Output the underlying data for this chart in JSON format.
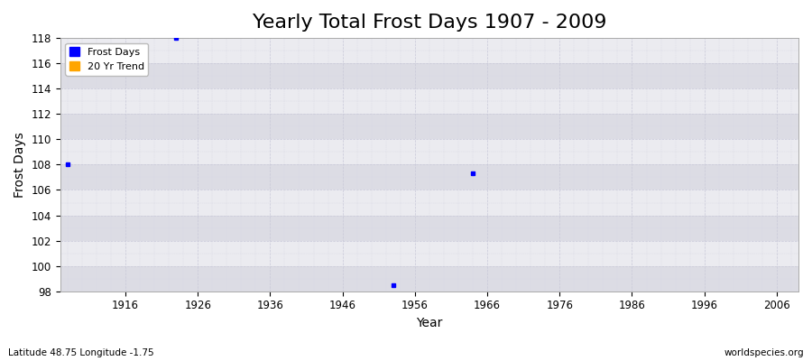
{
  "title": "Yearly Total Frost Days 1907 - 2009",
  "xlabel": "Year",
  "ylabel": "Frost Days",
  "xlim": [
    1907,
    2009
  ],
  "ylim": [
    98,
    118
  ],
  "yticks": [
    98,
    100,
    102,
    104,
    106,
    108,
    110,
    112,
    114,
    116,
    118
  ],
  "xticks": [
    1916,
    1926,
    1936,
    1946,
    1956,
    1966,
    1976,
    1986,
    1996,
    2006
  ],
  "data_points": [
    {
      "year": 1908,
      "value": 108
    },
    {
      "year": 1923,
      "value": 118
    },
    {
      "year": 1953,
      "value": 98.5
    },
    {
      "year": 1964,
      "value": 107.3
    }
  ],
  "point_color": "#0000ff",
  "trend_color": "#ffa500",
  "background_color": "#ffffff",
  "plot_bg_color": "#e8e8ee",
  "band_color_light": "#ebebf0",
  "band_color_dark": "#dcdce4",
  "grid_major_color": "#c8c8d8",
  "grid_minor_color": "#d8d8e4",
  "legend_labels": [
    "Frost Days",
    "20 Yr Trend"
  ],
  "subtitle_left": "Latitude 48.75 Longitude -1.75",
  "subtitle_right": "worldspecies.org",
  "title_fontsize": 16,
  "axis_label_fontsize": 10,
  "tick_fontsize": 8.5
}
